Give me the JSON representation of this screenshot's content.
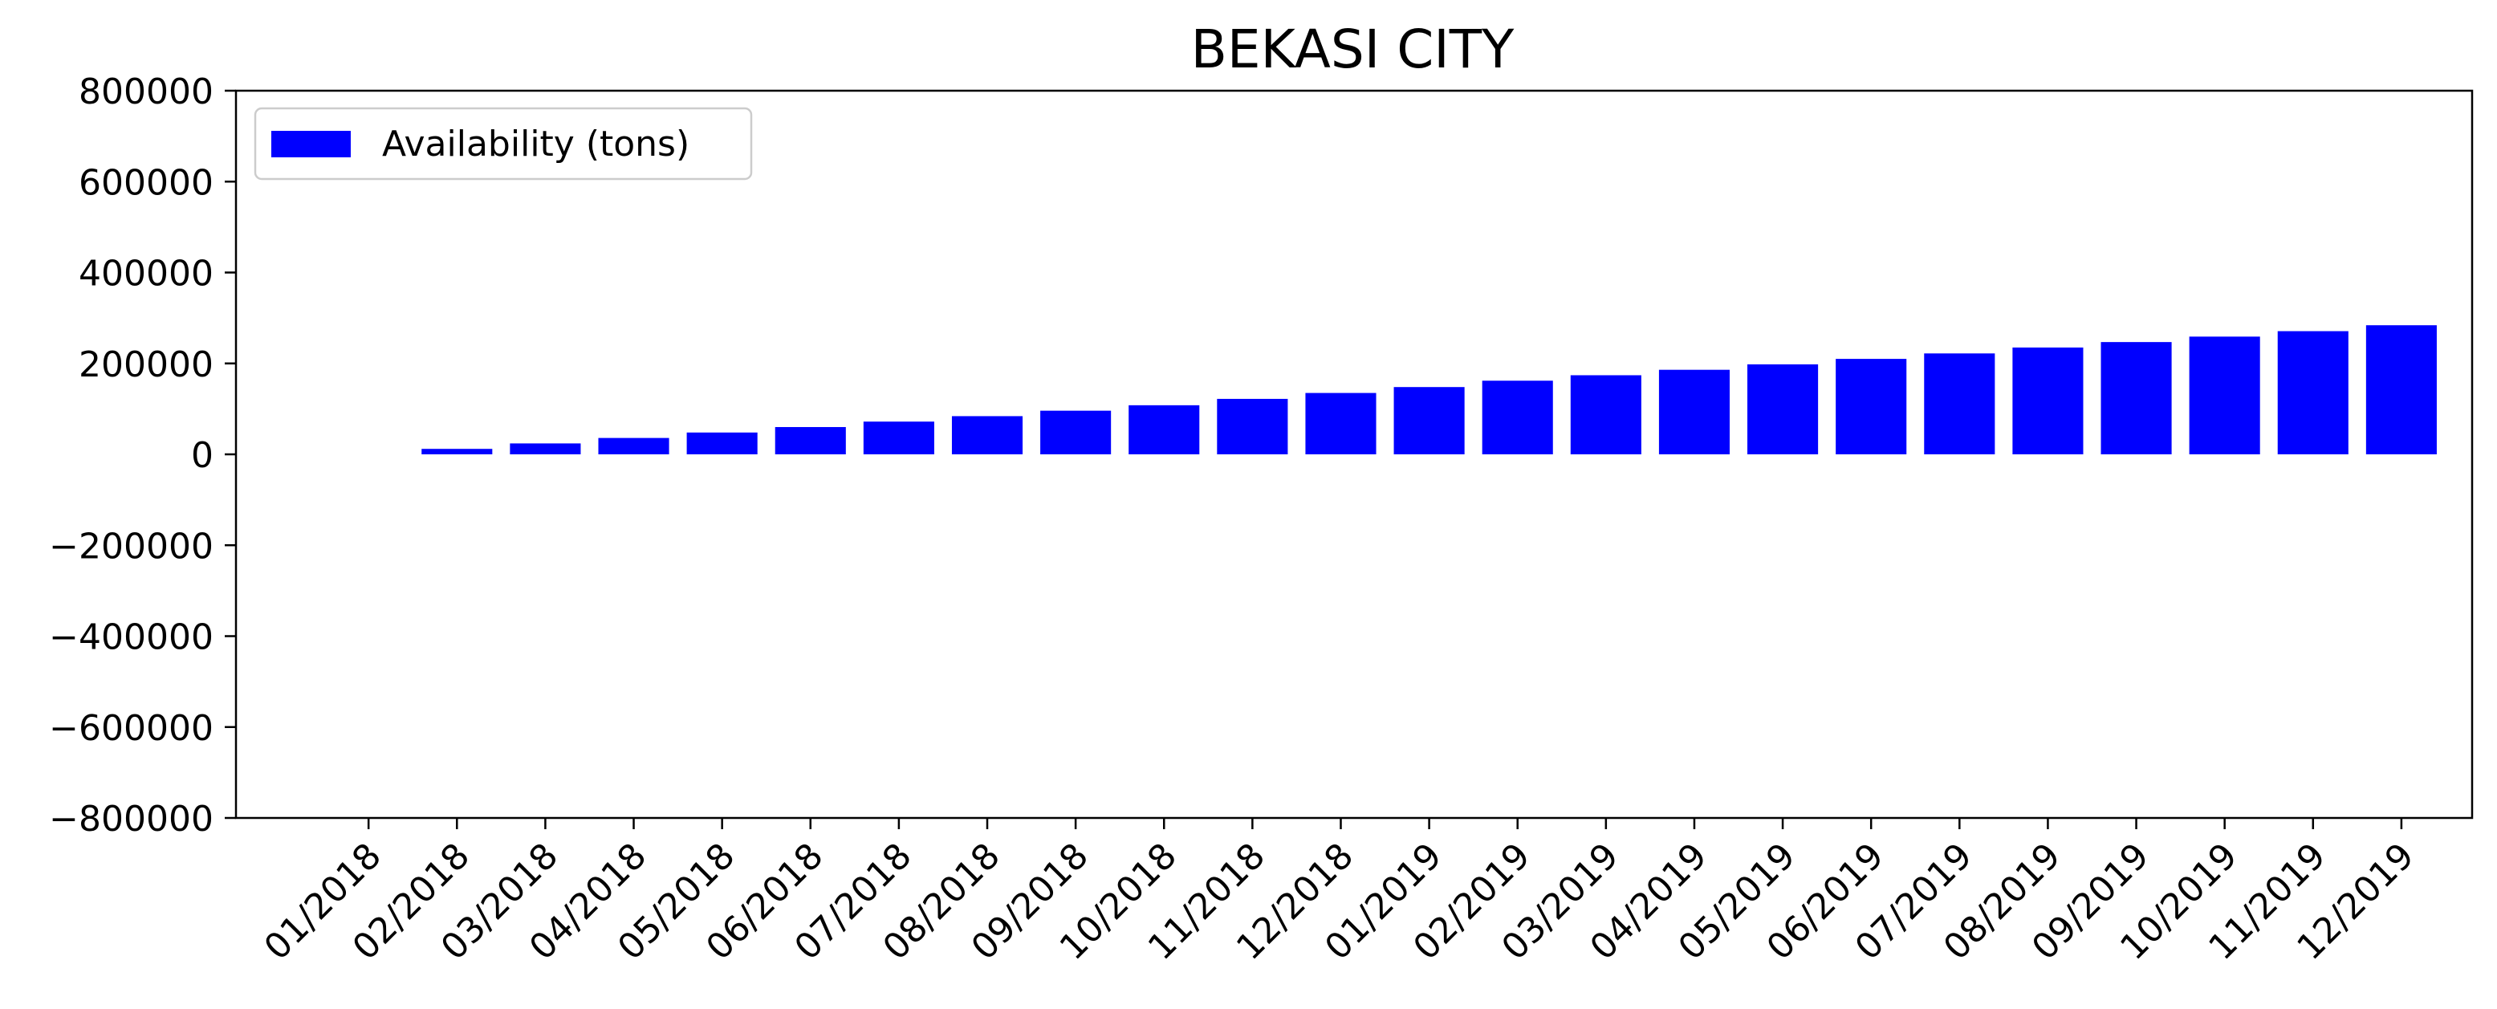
{
  "chart_data": {
    "type": "bar",
    "title": "BEKASI CITY",
    "xlabel": "",
    "ylabel": "",
    "categories": [
      "01/2018",
      "02/2018",
      "03/2018",
      "04/2018",
      "05/2018",
      "06/2018",
      "07/2018",
      "08/2018",
      "09/2018",
      "10/2018",
      "11/2018",
      "12/2018",
      "01/2019",
      "02/2019",
      "03/2019",
      "04/2019",
      "05/2019",
      "06/2019",
      "07/2019",
      "08/2019",
      "09/2019",
      "10/2019",
      "11/2019",
      "12/2019"
    ],
    "series": [
      {
        "name": "Availability (tons)",
        "color": "#0000ff",
        "values": [
          0,
          12000,
          24000,
          36000,
          48000,
          60000,
          72000,
          84000,
          96000,
          108000,
          122000,
          135000,
          148000,
          162000,
          174000,
          186000,
          198000,
          210000,
          222000,
          235000,
          247000,
          259000,
          271000,
          284000
        ]
      }
    ],
    "ylim": [
      -800000,
      800000
    ],
    "yticks": [
      -800000,
      -600000,
      -400000,
      -200000,
      0,
      200000,
      400000,
      600000,
      800000
    ],
    "ytick_labels": [
      "−800000",
      "−600000",
      "−400000",
      "−200000",
      "0",
      "200000",
      "400000",
      "600000",
      "800000"
    ],
    "grid": false,
    "legend_position": "top-left"
  }
}
